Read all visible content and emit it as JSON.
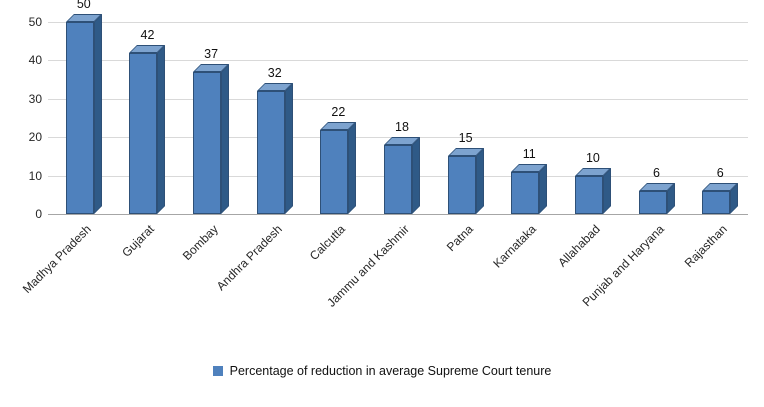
{
  "chart_data": {
    "type": "bar",
    "title": "",
    "xlabel": "",
    "ylabel": "",
    "categories": [
      "Madhya Pradesh",
      "Gujarat",
      "Bombay",
      "Andhra Pradesh",
      "Calcutta",
      "Jammu and Kashmir",
      "Patna",
      "Karnataka",
      "Allahabad",
      "Punjab and Haryana",
      "Rajasthan"
    ],
    "values": [
      50,
      42,
      37,
      32,
      22,
      18,
      15,
      11,
      10,
      6,
      6
    ],
    "ylim": [
      0,
      50
    ],
    "yticks": [
      0,
      10,
      20,
      30,
      40,
      50
    ],
    "grid": true,
    "style": "3d-bar",
    "legend": {
      "label": "Percentage of reduction in average Supreme Court tenure",
      "position": "bottom",
      "swatch_color": "#4f81bd"
    },
    "colors": {
      "bar_front": "#4f81bd",
      "bar_side": "#2f5a87",
      "bar_top": "#7da3cf",
      "bar_outline": "#2e5077",
      "gridline": "#d9d9d9",
      "axis_line": "#a6a6a6",
      "text": "#262626"
    }
  }
}
